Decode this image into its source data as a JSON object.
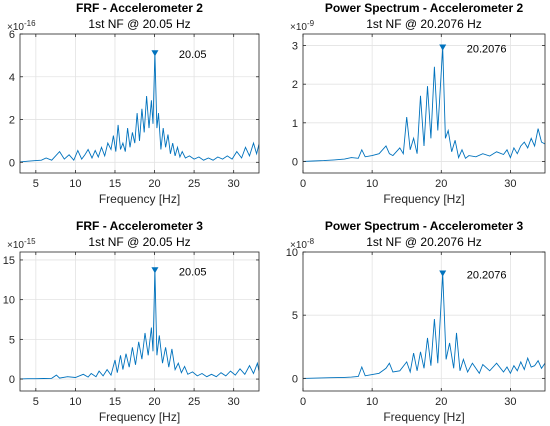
{
  "chart_data": [
    {
      "type": "line",
      "title": "FRF - Accelerometer 2",
      "subtitle": "1st NF @ 20.05 Hz",
      "xlabel": "Frequency [Hz]",
      "ylabel": "",
      "exponent_label": "×10",
      "exponent_power": "-16",
      "xlim": [
        3,
        33.2
      ],
      "ylim": [
        -0.5,
        6
      ],
      "xticks": [
        5,
        10,
        15,
        20,
        25,
        30
      ],
      "yticks": [
        0,
        2,
        4,
        6
      ],
      "grid": true,
      "line_color": "#0072BD",
      "peak": {
        "x": 20.05,
        "y": 5.1,
        "label": "20.05"
      },
      "series": [
        {
          "x": [
            3,
            4,
            5,
            5.7,
            6.3,
            7,
            7.5,
            8,
            8.6,
            9.2,
            9.8,
            10.3,
            10.8,
            11.2,
            11.6,
            12.1,
            12.5,
            12.9,
            13.3,
            13.7,
            14.1,
            14.5,
            14.8,
            15.1,
            15.4,
            15.7,
            16,
            16.3,
            16.6,
            16.9,
            17.2,
            17.5,
            17.8,
            18.1,
            18.4,
            18.7,
            19,
            19.3,
            19.6,
            19.8,
            20.05,
            20.3,
            20.5,
            20.8,
            21.1,
            21.4,
            21.7,
            22,
            22.3,
            22.6,
            22.9,
            23.2,
            23.5,
            23.9,
            24.4,
            25,
            25.6,
            26.2,
            26.8,
            27.4,
            28,
            28.6,
            29.2,
            29.8,
            30.4,
            31,
            31.5,
            32,
            32.5,
            32.9,
            33.2
          ],
          "y": [
            0.02,
            0.05,
            0.08,
            0.1,
            0.2,
            0.1,
            0.3,
            0.5,
            0.15,
            0.35,
            0.1,
            0.55,
            0.15,
            0.35,
            0.6,
            0.2,
            0.55,
            0.25,
            0.7,
            0.3,
            0.9,
            0.6,
            1.25,
            0.5,
            1.75,
            0.6,
            0.9,
            0.5,
            1.6,
            0.7,
            1.4,
            0.9,
            2.3,
            1.0,
            2.5,
            1.4,
            3.1,
            1.6,
            2.9,
            1.8,
            5.1,
            1.6,
            2.3,
            0.6,
            1.6,
            0.7,
            1.3,
            0.4,
            0.9,
            0.3,
            0.7,
            0.25,
            0.5,
            0.2,
            0.3,
            0.15,
            0.25,
            0.1,
            0.2,
            0.1,
            0.25,
            0.15,
            0.3,
            0.15,
            0.5,
            0.2,
            0.7,
            0.3,
            0.9,
            0.4,
            0.85
          ]
        }
      ]
    },
    {
      "type": "line",
      "title": "Power Spectrum - Accelerometer 2",
      "subtitle": "1st NF @ 20.2076 Hz",
      "xlabel": "Frequency [Hz]",
      "ylabel": "",
      "exponent_label": "×10",
      "exponent_power": "-9",
      "xlim": [
        0,
        35
      ],
      "ylim": [
        -0.3,
        3.3
      ],
      "xticks": [
        0,
        10,
        20,
        30
      ],
      "yticks": [
        0,
        1,
        2,
        3
      ],
      "grid": true,
      "line_color": "#0072BD",
      "peak": {
        "x": 20.2076,
        "y": 2.95,
        "label": "20.2076"
      },
      "series": [
        {
          "x": [
            0,
            1.5,
            3,
            4.5,
            6,
            7,
            8,
            8.5,
            9,
            10,
            11,
            12,
            12.5,
            13,
            14,
            14.5,
            15,
            15.5,
            16,
            16.5,
            17,
            17.5,
            18,
            18.5,
            19,
            19.5,
            20.2,
            20.6,
            21,
            21.5,
            22,
            22.5,
            23,
            23.5,
            24,
            25,
            26,
            27,
            28,
            29,
            29.5,
            30,
            30.5,
            31,
            31.5,
            32,
            32.5,
            33,
            33.5,
            34,
            34.5,
            35
          ],
          "y": [
            0.0,
            0.01,
            0.02,
            0.04,
            0.06,
            0.1,
            0.08,
            0.3,
            0.12,
            0.15,
            0.2,
            0.4,
            0.2,
            0.15,
            0.35,
            0.2,
            1.15,
            0.3,
            0.6,
            0.2,
            1.7,
            0.4,
            1.95,
            0.6,
            2.45,
            0.8,
            2.95,
            0.6,
            0.8,
            0.25,
            0.55,
            0.1,
            0.3,
            0.08,
            0.15,
            0.12,
            0.2,
            0.14,
            0.25,
            0.18,
            0.3,
            0.1,
            0.35,
            0.2,
            0.4,
            0.5,
            0.35,
            0.6,
            0.4,
            0.85,
            0.5,
            0.45
          ]
        }
      ]
    },
    {
      "type": "line",
      "title": "FRF - Accelerometer 3",
      "subtitle": "1st NF @ 20.05 Hz",
      "xlabel": "Frequency [Hz]",
      "ylabel": "",
      "exponent_label": "×10",
      "exponent_power": "-15",
      "xlim": [
        3,
        33.2
      ],
      "ylim": [
        -1.5,
        16
      ],
      "xticks": [
        5,
        10,
        15,
        20,
        25,
        30
      ],
      "yticks": [
        0,
        5,
        10,
        15
      ],
      "grid": true,
      "line_color": "#0072BD",
      "peak": {
        "x": 20.05,
        "y": 13.7,
        "label": "20.05"
      },
      "series": [
        {
          "x": [
            3,
            4,
            5,
            6,
            7,
            7.6,
            8,
            9,
            10,
            11,
            11.6,
            12,
            12.6,
            13,
            13.5,
            14,
            14.5,
            15,
            15.3,
            15.7,
            16,
            16.4,
            16.8,
            17.2,
            17.6,
            18,
            18.4,
            18.8,
            19.2,
            19.6,
            19.8,
            20.05,
            20.3,
            20.6,
            21,
            21.4,
            21.8,
            22.2,
            22.6,
            23,
            23.4,
            23.8,
            24.2,
            24.8,
            25.4,
            26,
            26.6,
            27.2,
            27.8,
            28.4,
            29,
            29.6,
            30.2,
            30.8,
            31.4,
            32,
            32.5,
            33,
            33.2
          ],
          "y": [
            0.02,
            0.05,
            0.05,
            0.08,
            0.1,
            0.5,
            0.12,
            0.3,
            0.2,
            0.6,
            0.25,
            0.7,
            0.3,
            1.0,
            0.4,
            1.2,
            0.5,
            2.4,
            0.8,
            3.0,
            1.2,
            3.2,
            1.5,
            4.0,
            1.8,
            4.7,
            2.5,
            5.8,
            3.0,
            6.5,
            3.5,
            13.7,
            3.0,
            5.5,
            2.0,
            4.0,
            1.5,
            3.8,
            1.2,
            2.0,
            0.8,
            1.6,
            0.6,
            0.9,
            0.4,
            0.7,
            0.3,
            0.6,
            0.3,
            0.8,
            0.4,
            1.0,
            0.5,
            1.3,
            0.6,
            1.7,
            0.7,
            2.0,
            1.0
          ]
        }
      ]
    },
    {
      "type": "line",
      "title": "Power Spectrum - Accelerometer 3",
      "subtitle": "1st NF @ 20.2076 Hz",
      "xlabel": "Frequency [Hz]",
      "ylabel": "",
      "exponent_label": "×10",
      "exponent_power": "-8",
      "xlim": [
        0,
        35
      ],
      "ylim": [
        -1,
        10
      ],
      "xticks": [
        0,
        10,
        20,
        30
      ],
      "yticks": [
        0,
        5,
        10
      ],
      "grid": true,
      "line_color": "#0072BD",
      "peak": {
        "x": 20.2076,
        "y": 8.3,
        "label": "20.2076"
      },
      "series": [
        {
          "x": [
            0,
            2,
            4,
            6,
            7,
            8,
            8.5,
            9,
            10,
            11,
            12,
            12.5,
            13,
            14,
            15,
            15.5,
            16,
            16.5,
            17,
            17.5,
            18,
            18.5,
            19,
            19.5,
            20.2,
            20.7,
            21.2,
            21.8,
            22.2,
            22.7,
            23.2,
            23.8,
            24.5,
            25.5,
            26,
            27,
            28,
            29,
            29.5,
            30,
            30.5,
            31,
            31.5,
            32,
            32.5,
            33,
            33.5,
            34,
            34.5,
            35
          ],
          "y": [
            0.0,
            0.02,
            0.05,
            0.08,
            0.1,
            0.15,
            0.9,
            0.2,
            0.3,
            0.4,
            0.8,
            1.2,
            0.5,
            0.6,
            1.3,
            0.5,
            2.0,
            0.6,
            2.1,
            0.8,
            3.2,
            1.0,
            4.7,
            1.2,
            8.3,
            1.5,
            2.8,
            0.8,
            3.6,
            0.6,
            1.5,
            0.5,
            1.2,
            0.4,
            1.1,
            0.6,
            1.2,
            0.5,
            0.9,
            0.4,
            1.0,
            0.6,
            1.3,
            0.7,
            1.6,
            0.9,
            1.0,
            1.4,
            0.8,
            1.2
          ]
        }
      ]
    }
  ]
}
